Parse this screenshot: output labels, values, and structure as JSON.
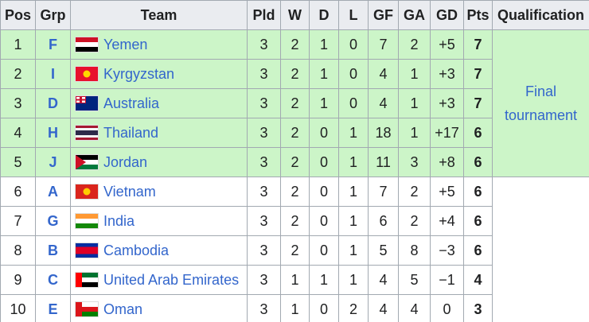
{
  "table": {
    "header": [
      "Pos",
      "Grp",
      "Team",
      "Pld",
      "W",
      "D",
      "L",
      "GF",
      "GA",
      "GD",
      "Pts",
      "Qualification"
    ],
    "rows": [
      [
        1,
        "F",
        "Yemen",
        3,
        2,
        1,
        0,
        7,
        2,
        "+5",
        7
      ],
      [
        2,
        "I",
        "Kyrgyzstan",
        3,
        2,
        1,
        0,
        4,
        1,
        "+3",
        7
      ],
      [
        3,
        "D",
        "Australia",
        3,
        2,
        1,
        0,
        4,
        1,
        "+3",
        7
      ],
      [
        4,
        "H",
        "Thailand",
        3,
        2,
        0,
        1,
        18,
        1,
        "+17",
        6
      ],
      [
        5,
        "J",
        "Jordan",
        3,
        2,
        0,
        1,
        11,
        3,
        "+8",
        6
      ],
      [
        6,
        "A",
        "Vietnam",
        3,
        2,
        0,
        1,
        7,
        2,
        "+5",
        6
      ],
      [
        7,
        "G",
        "India",
        3,
        2,
        0,
        1,
        6,
        2,
        "+4",
        6
      ],
      [
        8,
        "B",
        "Cambodia",
        3,
        2,
        0,
        1,
        5,
        8,
        "−3",
        6
      ],
      [
        9,
        "C",
        "United Arab Emirates",
        3,
        1,
        1,
        1,
        4,
        5,
        "−1",
        4
      ],
      [
        10,
        "E",
        "Oman",
        3,
        1,
        0,
        2,
        4,
        4,
        "0",
        3
      ]
    ],
    "qualification": "Final tournament"
  }
}
